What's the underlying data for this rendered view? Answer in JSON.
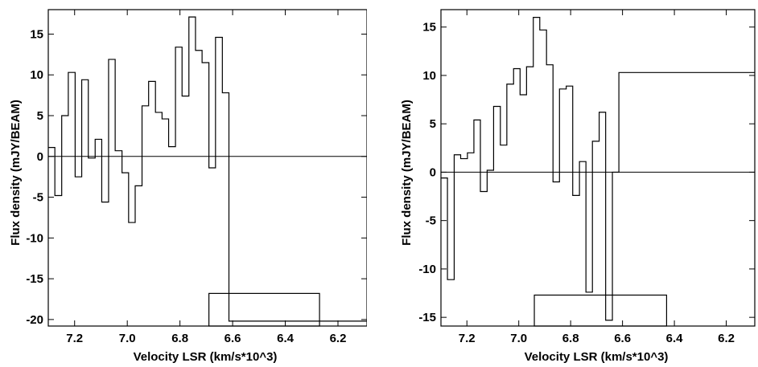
{
  "chart_data": [
    {
      "type": "line",
      "drawstyle": "steps",
      "title": "",
      "xlabel": "Velocity LSR (km/s*10^3)",
      "ylabel": "Flux density (mJY/BEAM)",
      "xlim": [
        7.3,
        6.09
      ],
      "ylim": [
        -20.8,
        18.0
      ],
      "x_inverted": true,
      "xticks": [
        7.2,
        7.0,
        6.8,
        6.6,
        6.4,
        6.2
      ],
      "xtick_labels": [
        "7.2",
        "7.0",
        "6.8",
        "6.6",
        "6.4",
        "6.2"
      ],
      "yticks": [
        15,
        10,
        5,
        0,
        -5,
        -10,
        -15,
        -20
      ],
      "ytick_labels": [
        "15",
        "10",
        "5",
        "0",
        "-5",
        "-10",
        "-15",
        "-20"
      ],
      "zero_line": true,
      "grid": false,
      "series": [
        {
          "x": [
            7.3,
            7.275,
            7.249,
            7.224,
            7.198,
            7.173,
            7.148,
            7.122,
            7.097,
            7.071,
            7.046,
            7.02,
            6.995,
            6.97,
            6.944,
            6.919,
            6.893,
            6.868,
            6.843,
            6.817,
            6.792,
            6.766,
            6.741,
            6.716,
            6.69,
            6.665,
            6.639,
            6.614,
            6.589,
            6.563,
            6.538,
            6.512,
            6.487,
            6.461,
            6.436,
            6.411,
            6.385,
            6.36,
            6.334,
            6.309,
            6.284,
            6.258,
            6.233,
            6.207,
            6.182,
            6.157,
            6.131,
            6.106
          ],
          "y": [
            1.1,
            -4.8,
            5.0,
            10.3,
            -2.5,
            9.4,
            -0.2,
            2.1,
            -5.6,
            11.9,
            0.7,
            -2.0,
            -8.1,
            -3.6,
            6.2,
            9.2,
            5.4,
            4.6,
            1.2,
            13.4,
            7.4,
            17.1,
            13.0,
            11.5,
            -1.4,
            14.6,
            7.8,
            -20.2,
            -20.2,
            -20.2,
            -20.2,
            -20.2,
            -20.2,
            -20.2,
            -20.2,
            -20.2,
            -20.2,
            -20.2,
            -20.2,
            -20.2,
            -20.2,
            -20.2,
            -20.2,
            -20.2,
            -20.2,
            -20.2,
            -20.2,
            -20.2
          ]
        }
      ],
      "velocity_range_box": {
        "x": [
          6.69,
          6.27
        ],
        "y": [
          -20.8,
          -16.8
        ]
      }
    },
    {
      "type": "line",
      "drawstyle": "steps",
      "title": "",
      "xlabel": "Velocity LSR (km/s*10^3)",
      "ylabel": "Flux density (mJY/BEAM)",
      "xlim": [
        7.3,
        6.09
      ],
      "ylim": [
        -15.9,
        16.8
      ],
      "x_inverted": true,
      "xticks": [
        7.2,
        7.0,
        6.8,
        6.6,
        6.4,
        6.2
      ],
      "xtick_labels": [
        "7.2",
        "7.0",
        "6.8",
        "6.6",
        "6.4",
        "6.2"
      ],
      "yticks": [
        15,
        10,
        5,
        0,
        -5,
        -10,
        -15
      ],
      "ytick_labels": [
        "15",
        "10",
        "5",
        "0",
        "-5",
        "-10",
        "-15"
      ],
      "zero_line": true,
      "grid": false,
      "series": [
        {
          "x": [
            7.3,
            7.275,
            7.249,
            7.224,
            7.198,
            7.173,
            7.148,
            7.122,
            7.097,
            7.071,
            7.046,
            7.02,
            6.995,
            6.97,
            6.944,
            6.919,
            6.893,
            6.868,
            6.843,
            6.817,
            6.792,
            6.766,
            6.741,
            6.716,
            6.69,
            6.665,
            6.639,
            6.614,
            6.589,
            6.563,
            6.538,
            6.512,
            6.487,
            6.461,
            6.436,
            6.411,
            6.385,
            6.36,
            6.334,
            6.309,
            6.284,
            6.258,
            6.233,
            6.207,
            6.182,
            6.157,
            6.131,
            6.106
          ],
          "y": [
            -0.6,
            -11.1,
            1.8,
            1.4,
            2.0,
            5.4,
            -2.0,
            0.2,
            6.8,
            2.8,
            9.1,
            10.7,
            8.0,
            10.9,
            16.0,
            14.7,
            11.1,
            -1.0,
            8.6,
            8.9,
            -2.4,
            1.1,
            -12.4,
            3.2,
            6.2,
            -15.3,
            0.0,
            10.3,
            10.3,
            10.3,
            10.3,
            10.3,
            10.3,
            10.3,
            10.3,
            10.3,
            10.3,
            10.3,
            10.3,
            10.3,
            10.3,
            10.3,
            10.3,
            10.3,
            10.3,
            10.3,
            10.3,
            10.3
          ]
        }
      ],
      "velocity_range_box": {
        "x": [
          6.94,
          6.43
        ],
        "y": [
          -15.9,
          -12.7
        ]
      }
    }
  ]
}
